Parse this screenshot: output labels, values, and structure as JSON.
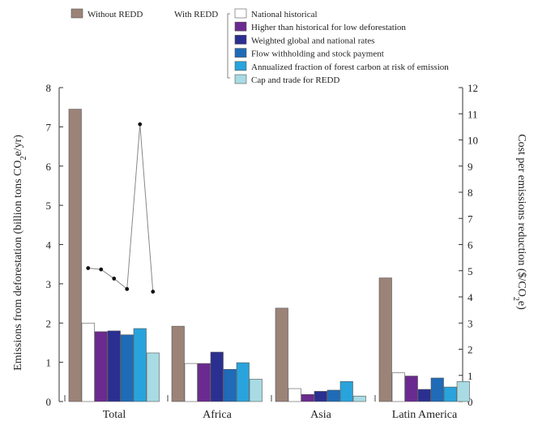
{
  "chart_data": {
    "type": "bar",
    "categories": [
      "Total",
      "Africa",
      "Asia",
      "Latin America"
    ],
    "ylabel_left": "Emissions from deforestation (billion tons CO",
    "ylabel_left_sub": "2",
    "ylabel_left_tail": "e/yr)",
    "ylabel_right": "Cost per emissions reduction ($/CO",
    "ylabel_right_sub": "2",
    "ylabel_right_tail": "e)",
    "ylim_left": [
      0,
      8
    ],
    "ylim_right": [
      0,
      12
    ],
    "yticks_left": [
      "0",
      "1",
      "2",
      "3",
      "4",
      "5",
      "6",
      "7",
      "8"
    ],
    "yticks_right": [
      "0",
      "1",
      "2",
      "3",
      "4",
      "5",
      "6",
      "7",
      "8",
      "9",
      "10",
      "11",
      "12"
    ],
    "legend": {
      "without_label": "Without REDD",
      "with_label": "With REDD",
      "placement": "top"
    },
    "series": [
      {
        "name": "Without REDD",
        "color": "#9c8378",
        "values": [
          7.45,
          1.92,
          2.38,
          3.15
        ]
      },
      {
        "name": "National historical",
        "color": "#ffffff",
        "values": [
          2.0,
          0.97,
          0.33,
          0.73
        ]
      },
      {
        "name": "Higher than historical for low deforestation",
        "color": "#6a2a8f",
        "values": [
          1.78,
          0.97,
          0.18,
          0.65
        ]
      },
      {
        "name": "Weighted global and national rates",
        "color": "#2b2f8f",
        "values": [
          1.8,
          1.26,
          0.26,
          0.31
        ]
      },
      {
        "name": "Flow withholding and stock payment",
        "color": "#1f6bb7",
        "values": [
          1.7,
          0.82,
          0.29,
          0.6
        ]
      },
      {
        "name": "Annualized fraction of forest carbon at risk of emission",
        "color": "#29a3dc",
        "values": [
          1.86,
          0.99,
          0.51,
          0.37
        ]
      },
      {
        "name": "Cap and trade for REDD",
        "color": "#a8dbe3",
        "values": [
          1.24,
          0.57,
          0.14,
          0.51
        ]
      }
    ],
    "cost_line": {
      "axis": "right",
      "values": [
        5.1,
        5.05,
        4.7,
        4.3,
        10.6,
        4.2
      ]
    }
  }
}
